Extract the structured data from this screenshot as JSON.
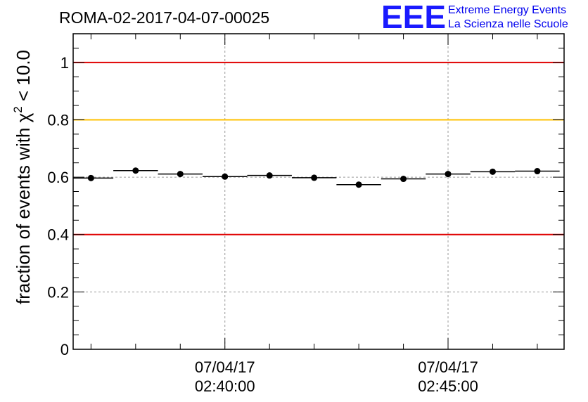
{
  "header": {
    "title": "ROMA-02-2017-04-07-00025",
    "logo_mark": "EEE",
    "logo_line1": "Extreme Energy Events",
    "logo_line2": "La Scienza nelle Scuole"
  },
  "colors": {
    "red_line": "#e00000",
    "yellow_line": "#ffc000",
    "grid": "#9a9a9a",
    "logo": "#1a1aff"
  },
  "chart_data": {
    "type": "scatter",
    "title": "ROMA-02-2017-04-07-00025",
    "ylabel_prefix": "fraction of events with χ",
    "ylabel_sup": "2",
    "ylabel_suffix": " < 10.0",
    "ylim": [
      0,
      1.1
    ],
    "xlim_minutes": [
      -3.4,
      7.6
    ],
    "y_ticks": [
      0,
      0.2,
      0.4,
      0.6,
      0.8,
      1
    ],
    "y_tick_labels": [
      "0",
      "0.2",
      "0.4",
      "0.6",
      "0.8",
      "1"
    ],
    "x_ticks_minutes": [
      0,
      5
    ],
    "x_tick_labels": [
      {
        "date": "07/04/17",
        "time": "02:40:00"
      },
      {
        "date": "07/04/17",
        "time": "02:45:00"
      }
    ],
    "grid": true,
    "bin_width_minutes": 1.0,
    "points": [
      {
        "x": -3.0,
        "y": 0.597
      },
      {
        "x": -2.0,
        "y": 0.623
      },
      {
        "x": -1.0,
        "y": 0.611
      },
      {
        "x": 0.0,
        "y": 0.602
      },
      {
        "x": 1.0,
        "y": 0.606
      },
      {
        "x": 2.0,
        "y": 0.598
      },
      {
        "x": 3.0,
        "y": 0.574
      },
      {
        "x": 4.0,
        "y": 0.594
      },
      {
        "x": 5.0,
        "y": 0.611
      },
      {
        "x": 6.0,
        "y": 0.619
      },
      {
        "x": 7.0,
        "y": 0.621
      }
    ],
    "reference_lines": [
      {
        "y": 1.0,
        "color": "#e00000"
      },
      {
        "y": 0.8,
        "color": "#ffc000"
      },
      {
        "y": 0.4,
        "color": "#e00000"
      }
    ]
  }
}
